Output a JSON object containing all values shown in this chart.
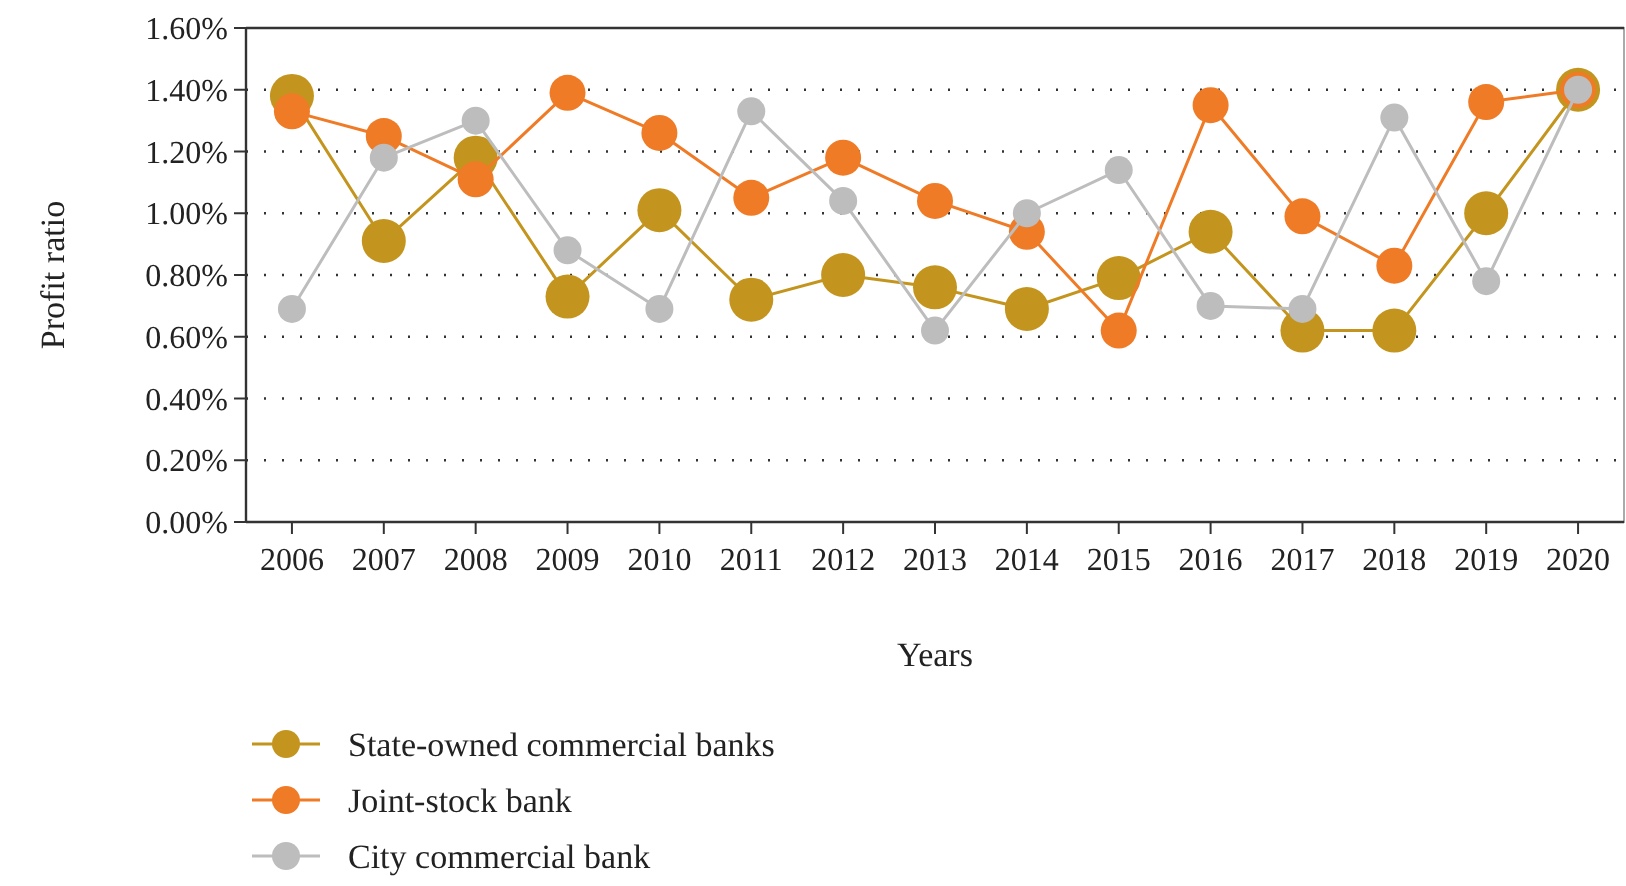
{
  "chart_data": {
    "type": "line",
    "xlabel": "Years",
    "ylabel": "Profit ratio",
    "categories": [
      "2006",
      "2007",
      "2008",
      "2009",
      "2010",
      "2011",
      "2012",
      "2013",
      "2014",
      "2015",
      "2016",
      "2017",
      "2018",
      "2019",
      "2020"
    ],
    "series": [
      {
        "name": "State-owned commercial banks",
        "color": "#c4951e",
        "values": [
          1.38,
          0.91,
          1.18,
          0.73,
          1.01,
          0.72,
          0.8,
          0.76,
          0.69,
          0.79,
          0.94,
          0.62,
          0.62,
          1.0,
          1.4
        ]
      },
      {
        "name": "Joint-stock bank",
        "color": "#ef7b26",
        "values": [
          1.33,
          1.25,
          1.11,
          1.39,
          1.26,
          1.05,
          1.18,
          1.04,
          0.94,
          0.62,
          1.35,
          0.99,
          0.83,
          1.36,
          1.4
        ]
      },
      {
        "name": "City commercial bank",
        "color": "#bdbdbd",
        "values": [
          0.69,
          1.18,
          1.3,
          0.88,
          0.69,
          1.33,
          1.04,
          0.62,
          1.0,
          1.14,
          0.7,
          0.69,
          1.31,
          0.78,
          1.4
        ]
      }
    ],
    "ylim": [
      0,
      1.6
    ],
    "yticks": [
      {
        "value": 0,
        "label": "0.00%"
      },
      {
        "value": 0.2,
        "label": "0.20%"
      },
      {
        "value": 0.4,
        "label": "0.40%"
      },
      {
        "value": 0.6,
        "label": "0.60%"
      },
      {
        "value": 0.8,
        "label": "0.80%"
      },
      {
        "value": 1.0,
        "label": "1.00%"
      },
      {
        "value": 1.2,
        "label": "1.20%"
      },
      {
        "value": 1.4,
        "label": "1.40%"
      },
      {
        "value": 1.6,
        "label": "1.60%"
      }
    ],
    "grid": "y",
    "legend": "bottom",
    "marker": "circle",
    "line_style": "solid"
  }
}
